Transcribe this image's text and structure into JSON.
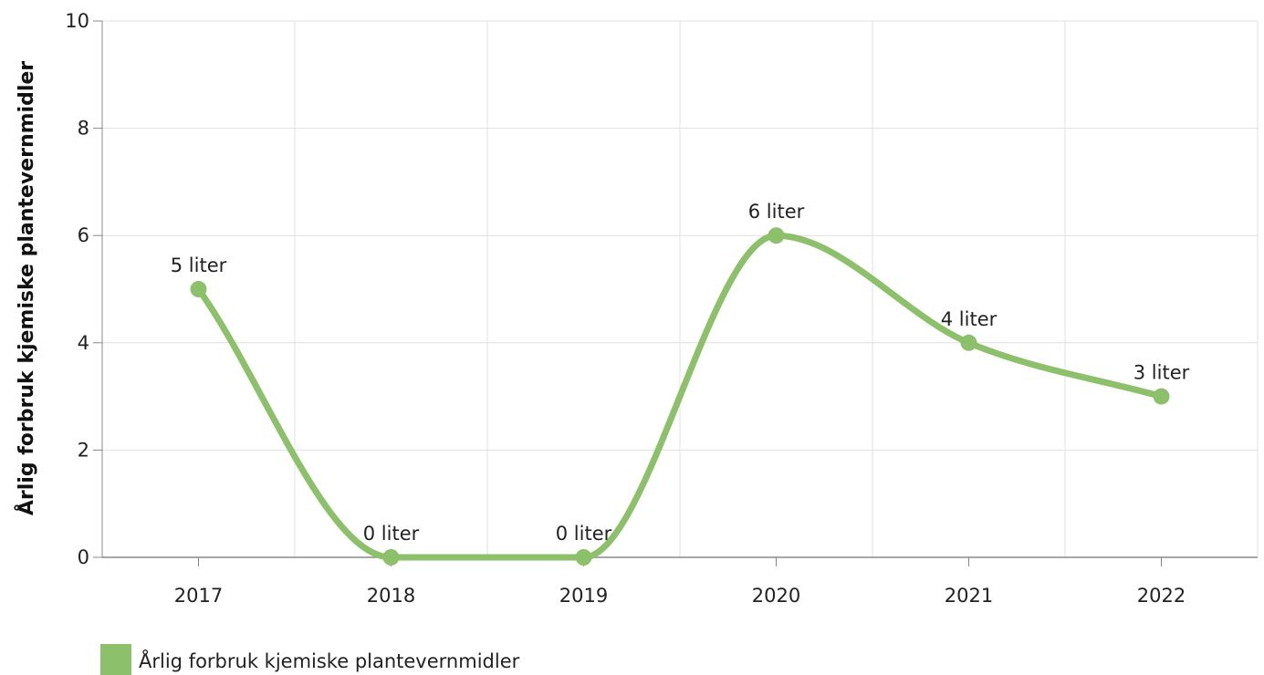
{
  "chart_data": {
    "type": "line",
    "smooth": true,
    "categories": [
      "2017",
      "2018",
      "2019",
      "2020",
      "2021",
      "2022"
    ],
    "series": [
      {
        "name": "Årlig forbruk kjemiske plantevernmidler",
        "values": [
          5,
          0,
          0,
          6,
          4,
          3
        ],
        "labels": [
          "5 liter",
          "0 liter",
          "0 liter",
          "6 liter",
          "4 liter",
          "3 liter"
        ],
        "color": "#8dc06a"
      }
    ],
    "ylabel": "Årlig forbruk kjemiske plantevernmidler",
    "ylim": [
      0,
      10
    ],
    "yticks": [
      "0",
      "2",
      "4",
      "6",
      "8",
      "10"
    ],
    "grid": true,
    "legend_position": "bottom-left"
  },
  "colors": {
    "series": "#8dc06a",
    "grid": "#e0e0e0",
    "axis": "#888888"
  }
}
